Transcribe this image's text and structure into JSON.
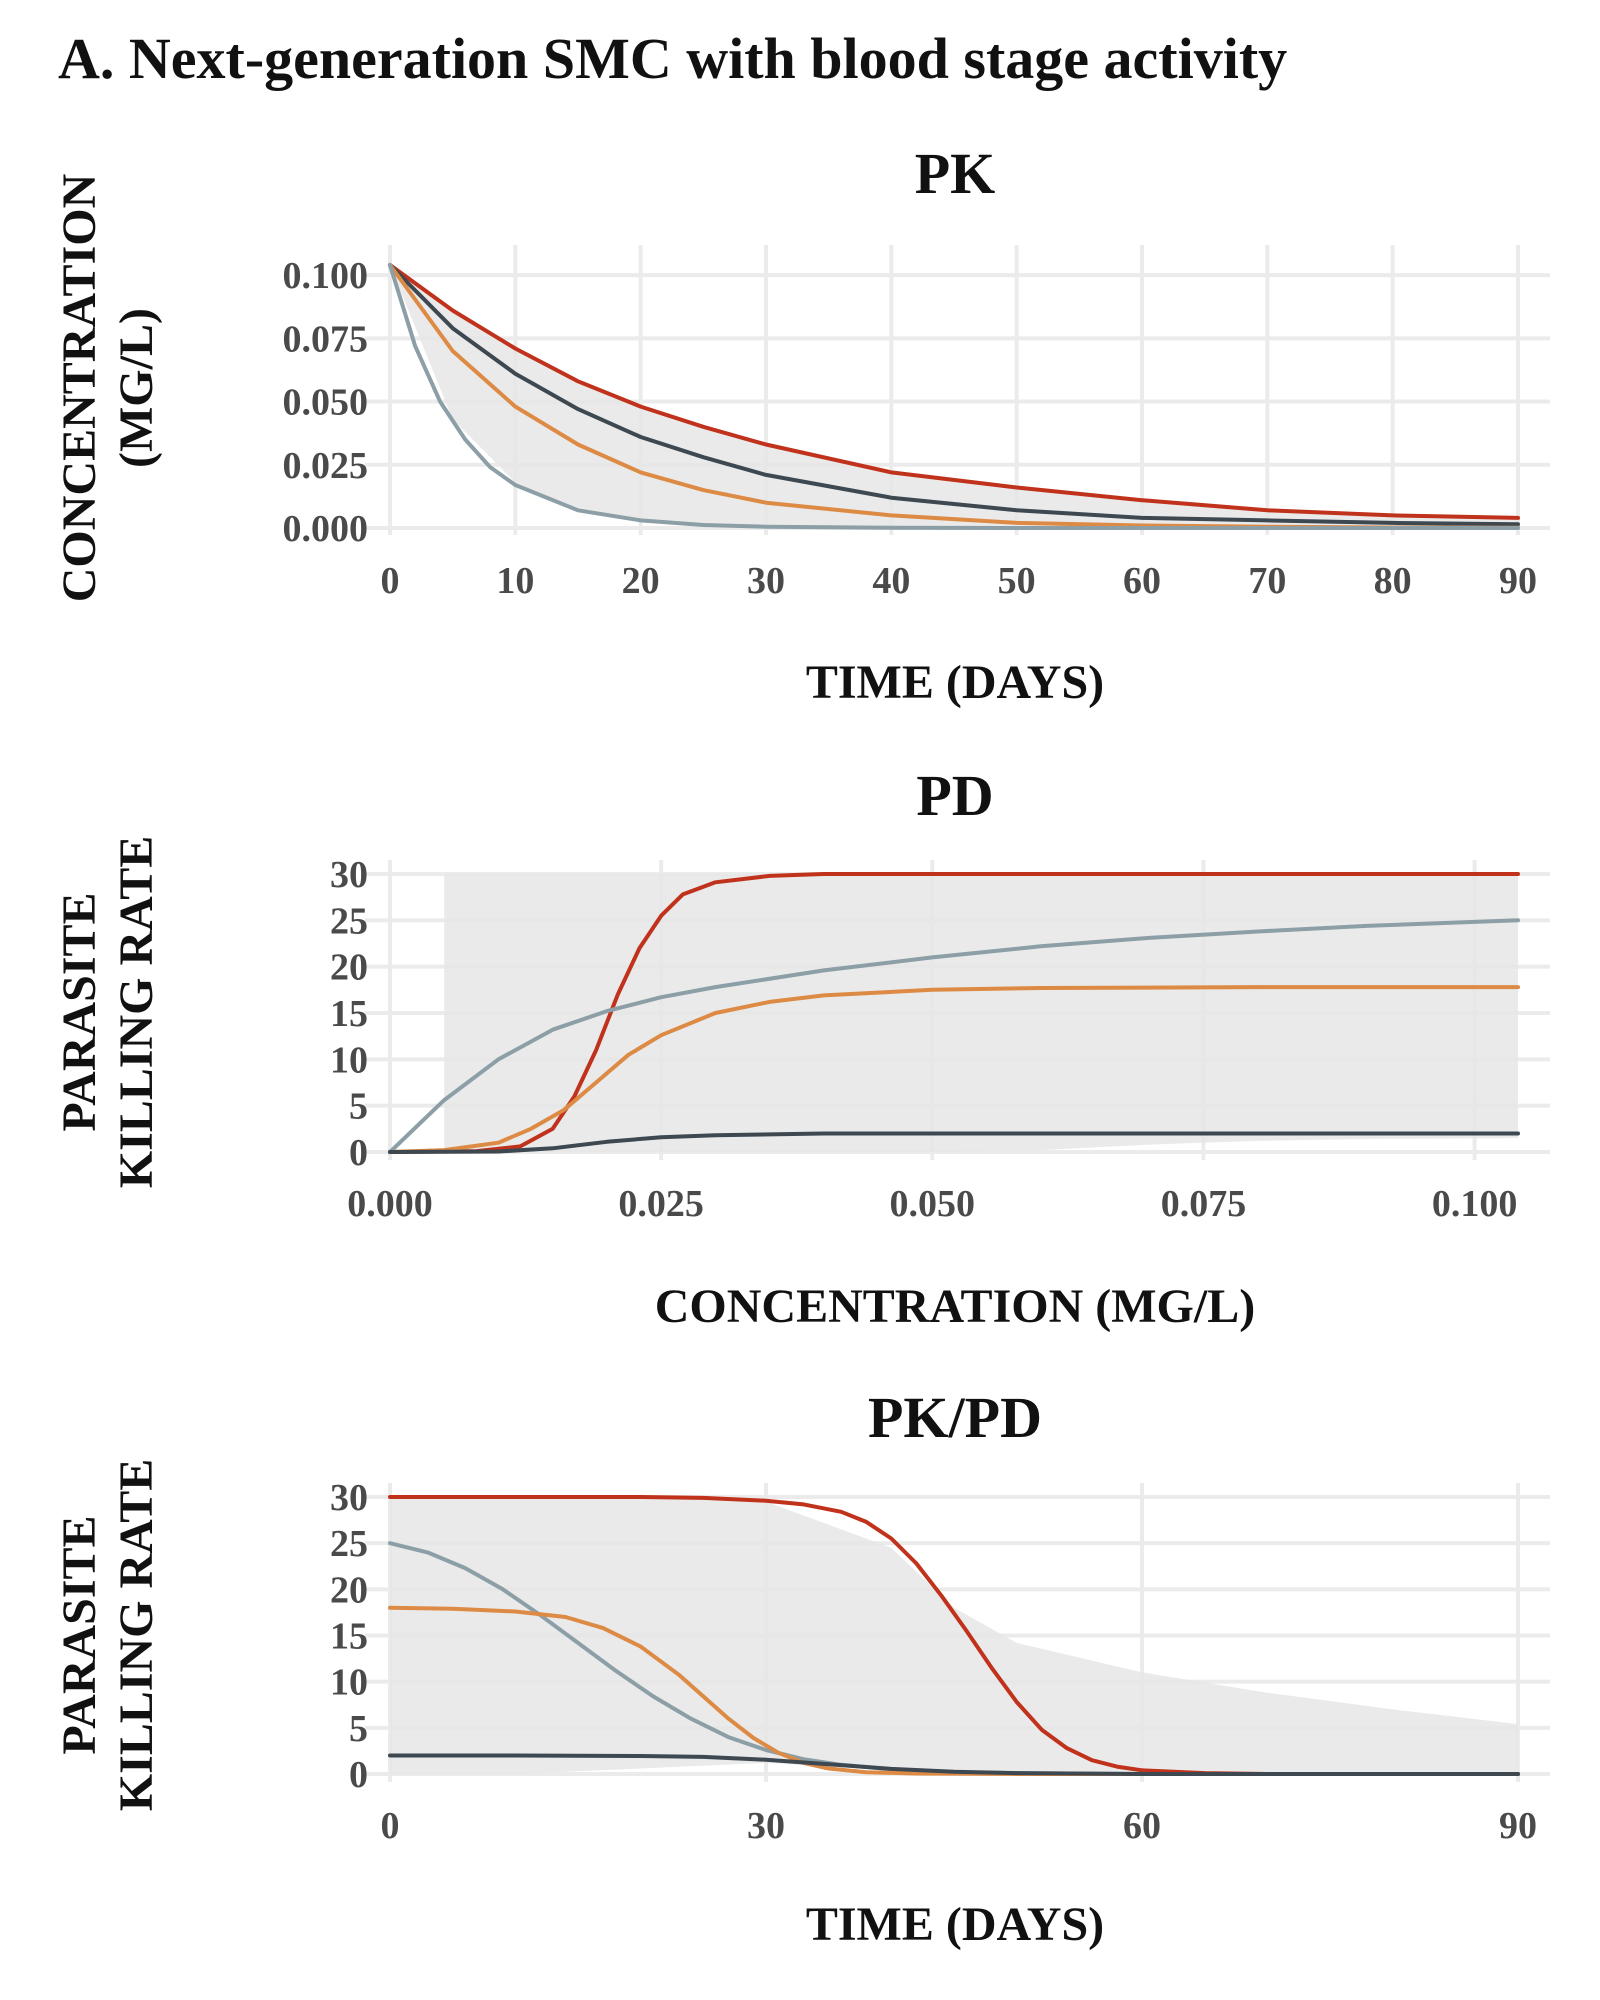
{
  "figure_title": "A. Next-generation SMC with blood stage activity",
  "colors": {
    "red": "#c0321c",
    "orange": "#dd8a45",
    "dark": "#3d4850",
    "grey_blue": "#8c9fa6",
    "band": "#e6e6e6"
  },
  "chart_data": [
    {
      "title": "PK",
      "type": "line",
      "xlabel": "TIME  (DAYS)",
      "ylabel_lines": [
        "CONCENTRATION",
        "(MG/L)"
      ],
      "xlim": [
        0,
        90
      ],
      "ylim": [
        0,
        0.104
      ],
      "x_ticks": [
        0,
        10,
        20,
        30,
        40,
        50,
        60,
        70,
        80,
        90
      ],
      "x_tick_labels": [
        "0",
        "10",
        "20",
        "30",
        "40",
        "50",
        "60",
        "70",
        "80",
        "90"
      ],
      "y_ticks": [
        0,
        0.025,
        0.05,
        0.075,
        0.1
      ],
      "y_tick_labels": [
        "0.000",
        "0.025",
        "0.050",
        "0.075",
        "0.100"
      ],
      "grid": true,
      "band": {
        "x": [
          0,
          5,
          10,
          15,
          20,
          25,
          30,
          40,
          50,
          60,
          70,
          80,
          90
        ],
        "lower": [
          0.104,
          0.043,
          0.018,
          0.007,
          0.003,
          0.001,
          0.0005,
          0.0001,
          0,
          0,
          0,
          0,
          0
        ],
        "upper": [
          0.104,
          0.086,
          0.071,
          0.058,
          0.048,
          0.04,
          0.033,
          0.022,
          0.016,
          0.011,
          0.007,
          0.005,
          0.004
        ]
      },
      "series": [
        {
          "color_key": "red",
          "x": [
            0,
            5,
            10,
            15,
            20,
            25,
            30,
            40,
            50,
            60,
            70,
            80,
            90
          ],
          "y": [
            0.104,
            0.086,
            0.071,
            0.058,
            0.048,
            0.04,
            0.033,
            0.022,
            0.016,
            0.011,
            0.007,
            0.005,
            0.004
          ]
        },
        {
          "color_key": "dark",
          "x": [
            0,
            5,
            10,
            15,
            20,
            25,
            30,
            40,
            50,
            60,
            70,
            80,
            90
          ],
          "y": [
            0.104,
            0.079,
            0.061,
            0.047,
            0.036,
            0.028,
            0.021,
            0.012,
            0.007,
            0.004,
            0.003,
            0.002,
            0.0015
          ]
        },
        {
          "color_key": "orange",
          "x": [
            0,
            5,
            10,
            15,
            20,
            25,
            30,
            40,
            50,
            60,
            70,
            80,
            90
          ],
          "y": [
            0.104,
            0.07,
            0.048,
            0.033,
            0.022,
            0.015,
            0.01,
            0.005,
            0.002,
            0.001,
            0.0005,
            0.0002,
            0.0001
          ]
        },
        {
          "color_key": "grey_blue",
          "x": [
            0,
            2,
            4,
            6,
            8,
            10,
            15,
            20,
            25,
            30,
            40,
            50,
            60,
            70,
            80,
            90
          ],
          "y": [
            0.104,
            0.072,
            0.05,
            0.035,
            0.024,
            0.017,
            0.007,
            0.003,
            0.0012,
            0.0005,
            0.0001,
            0,
            0,
            0,
            0,
            0
          ]
        }
      ]
    },
    {
      "title": "PD",
      "type": "line",
      "xlabel": "CONCENTRATION  (MG/L)",
      "ylabel_lines": [
        "PARASITE",
        "KILLING  RATE"
      ],
      "xlim": [
        0,
        0.104
      ],
      "ylim": [
        0,
        30
      ],
      "x_ticks": [
        0,
        0.025,
        0.05,
        0.075,
        0.1
      ],
      "x_tick_labels": [
        "0.000",
        "0.025",
        "0.050",
        "0.075",
        "0.100"
      ],
      "y_ticks": [
        0,
        5,
        10,
        15,
        20,
        25,
        30
      ],
      "y_tick_labels": [
        "0",
        "5",
        "10",
        "15",
        "20",
        "25",
        "30"
      ],
      "grid": true,
      "band": {
        "x": [
          0.005,
          0.01,
          0.02,
          0.03,
          0.04,
          0.05,
          0.06,
          0.07,
          0.08,
          0.09,
          0.104
        ],
        "lower": [
          0,
          0,
          0,
          0,
          0,
          0,
          0.2,
          0.8,
          1.2,
          1.4,
          1.5
        ],
        "upper": [
          30,
          30,
          30,
          30,
          30,
          30,
          30,
          30,
          30,
          30,
          30
        ]
      },
      "series": [
        {
          "color_key": "red",
          "x": [
            0,
            0.008,
            0.012,
            0.015,
            0.017,
            0.019,
            0.021,
            0.023,
            0.025,
            0.027,
            0.03,
            0.035,
            0.04,
            0.05,
            0.07,
            0.104
          ],
          "y": [
            0,
            0.1,
            0.6,
            2.5,
            6,
            11,
            17,
            22,
            25.5,
            27.8,
            29.1,
            29.8,
            30,
            30,
            30,
            30
          ]
        },
        {
          "color_key": "grey_blue",
          "x": [
            0,
            0.005,
            0.01,
            0.015,
            0.02,
            0.025,
            0.03,
            0.04,
            0.05,
            0.06,
            0.07,
            0.08,
            0.09,
            0.104
          ],
          "y": [
            0,
            5.6,
            10,
            13.2,
            15.2,
            16.7,
            17.8,
            19.6,
            21,
            22.2,
            23.1,
            23.8,
            24.4,
            25
          ]
        },
        {
          "color_key": "orange",
          "x": [
            0,
            0.005,
            0.01,
            0.013,
            0.016,
            0.019,
            0.022,
            0.025,
            0.03,
            0.035,
            0.04,
            0.05,
            0.06,
            0.08,
            0.104
          ],
          "y": [
            0,
            0.2,
            1,
            2.5,
            4.5,
            7.5,
            10.5,
            12.6,
            15,
            16.2,
            16.9,
            17.5,
            17.7,
            17.8,
            17.8
          ]
        },
        {
          "color_key": "dark",
          "x": [
            0,
            0.01,
            0.015,
            0.02,
            0.025,
            0.03,
            0.04,
            0.06,
            0.08,
            0.104
          ],
          "y": [
            0,
            0.05,
            0.4,
            1.1,
            1.6,
            1.8,
            2,
            2,
            2,
            2
          ]
        }
      ]
    },
    {
      "title": "PK/PD",
      "type": "line",
      "xlabel": "TIME  (DAYS)",
      "ylabel_lines": [
        "PARASITE",
        "KILLING  RATE"
      ],
      "xlim": [
        0,
        90
      ],
      "ylim": [
        0,
        30
      ],
      "x_ticks": [
        0,
        30,
        60,
        90
      ],
      "x_tick_labels": [
        "0",
        "30",
        "60",
        "90"
      ],
      "y_ticks": [
        0,
        5,
        10,
        15,
        20,
        25,
        30
      ],
      "y_tick_labels": [
        "0",
        "5",
        "10",
        "15",
        "20",
        "25",
        "30"
      ],
      "grid": true,
      "band": {
        "x": [
          0,
          10,
          15,
          20,
          30,
          40,
          45,
          50,
          60,
          70,
          80,
          90
        ],
        "lower": [
          0,
          0,
          0.3,
          0.6,
          1.2,
          0.4,
          0.3,
          0.2,
          0,
          0,
          0,
          0
        ],
        "upper": [
          30,
          30,
          30,
          30,
          29.5,
          24.5,
          18,
          14.2,
          11,
          8.8,
          7,
          5.4
        ]
      },
      "series": [
        {
          "color_key": "red",
          "x": [
            0,
            10,
            20,
            25,
            30,
            33,
            36,
            38,
            40,
            42,
            44,
            46,
            48,
            50,
            52,
            54,
            56,
            58,
            60,
            65,
            70,
            90
          ],
          "y": [
            30,
            30,
            30,
            29.9,
            29.6,
            29.2,
            28.4,
            27.3,
            25.5,
            22.8,
            19.3,
            15.5,
            11.5,
            7.8,
            4.8,
            2.8,
            1.5,
            0.8,
            0.4,
            0.1,
            0,
            0
          ]
        },
        {
          "color_key": "grey_blue",
          "x": [
            0,
            3,
            6,
            9,
            12,
            15,
            18,
            21,
            24,
            27,
            30,
            33,
            36,
            40,
            45,
            50,
            60,
            90
          ],
          "y": [
            25,
            24,
            22.3,
            20,
            17.2,
            14.2,
            11.2,
            8.4,
            6,
            4,
            2.6,
            1.6,
            1,
            0.5,
            0.2,
            0.1,
            0,
            0
          ]
        },
        {
          "color_key": "orange",
          "x": [
            0,
            5,
            10,
            14,
            17,
            20,
            23,
            25,
            27,
            29,
            31,
            33,
            35,
            38,
            42,
            50,
            90
          ],
          "y": [
            18,
            17.9,
            17.6,
            17,
            15.8,
            13.8,
            10.8,
            8.4,
            6,
            3.9,
            2.3,
            1.2,
            0.6,
            0.2,
            0.05,
            0,
            0
          ]
        },
        {
          "color_key": "dark",
          "x": [
            0,
            10,
            20,
            25,
            30,
            35,
            40,
            45,
            50,
            60,
            90
          ],
          "y": [
            2,
            2,
            1.95,
            1.85,
            1.55,
            1.05,
            0.55,
            0.25,
            0.1,
            0,
            0
          ]
        }
      ]
    }
  ]
}
